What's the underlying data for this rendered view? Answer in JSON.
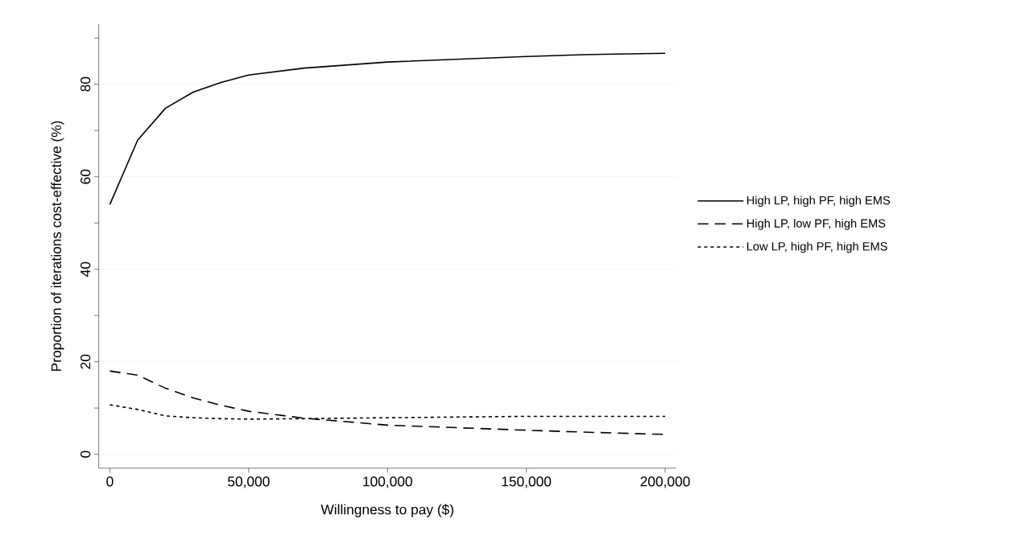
{
  "chart_data": {
    "type": "line",
    "xlabel": "Willingness to pay ($)",
    "ylabel": "Proportion of iterations cost-effective (%)",
    "x": [
      0,
      10000,
      20000,
      30000,
      40000,
      50000,
      70000,
      100000,
      150000,
      170000,
      200000
    ],
    "series": [
      {
        "name": "High LP, high PF, high EMS",
        "color": "#000000",
        "line_style": "solid",
        "values": [
          54,
          67.9,
          74.8,
          78.3,
          80.4,
          82,
          83.5,
          84.8,
          86,
          86.4,
          86.7
        ]
      },
      {
        "name": "High LP, low PF, high EMS",
        "color": "#000000",
        "line_style": "dashed",
        "values": [
          18,
          17.1,
          14.3,
          12.2,
          10.6,
          9.3,
          7.8,
          6.3,
          5.2,
          4.8,
          4.3
        ]
      },
      {
        "name": "Low LP, high PF, high EMS",
        "color": "#000000",
        "line_style": "dotted",
        "values": [
          10.7,
          9.7,
          8.3,
          7.9,
          7.7,
          7.6,
          7.7,
          7.9,
          8.2,
          8.2,
          8.2
        ]
      }
    ],
    "xlim": [
      -4000,
      204000
    ],
    "ylim": [
      -3,
      93
    ],
    "xticks": [
      {
        "value": 0,
        "label": "0"
      },
      {
        "value": 50000,
        "label": "50,000"
      },
      {
        "value": 100000,
        "label": "100,000"
      },
      {
        "value": 150000,
        "label": "150,000"
      },
      {
        "value": 200000,
        "label": "200,000"
      }
    ],
    "yticks": [
      0,
      {
        "value": 10,
        "label": null
      },
      20,
      {
        "value": 30,
        "label": null
      },
      40,
      {
        "value": 50,
        "label": null
      },
      60,
      {
        "value": 70,
        "label": null
      },
      80,
      {
        "value": 90,
        "label": null
      }
    ],
    "grid": "y",
    "legend": "right",
    "marker": "none"
  }
}
